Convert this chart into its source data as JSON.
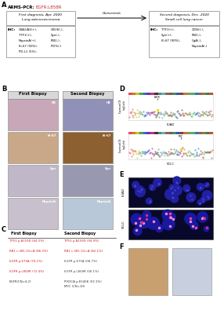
{
  "panel_A": {
    "arms_pcr_label": "ARMS-PCR:",
    "arms_pcr_value": "EGFR:L858R",
    "box1_lines": [
      "First diagnosis, Apr. 2020",
      "Lung adenocarcinoma"
    ],
    "box2_lines": [
      "Second diagnosis, Dec. 2020",
      "Small cell lung cancer"
    ],
    "arrow_label": "Osimertinib",
    "box1_ihc_left": [
      "CKA1/A3(+),",
      "TTF1(+),",
      "NapsinA(+),",
      "Ki-67 (50%),",
      "PD-L1 (5%),"
    ],
    "box1_ihc_right": [
      "CK5/6(-),",
      "Syn(-),",
      "P40(-),",
      "PD%(-) "
    ],
    "box2_ihc_left": [
      "TTF1(+),",
      "Syn(+),",
      "Ki-67 (90%),"
    ],
    "box2_ihc_right": [
      "CD56(-),",
      "P40(-),",
      "CgA(-),",
      "NapsinA(-)"
    ]
  },
  "panel_B": {
    "col1_header": "First Biopsy",
    "col2_header": "Second Biopsy",
    "rows": [
      "HE",
      "Ki-67",
      "Syn",
      "NapsinA"
    ],
    "row_colors_1": [
      "#c8a8b8",
      "#c8a888",
      "#c0b8c8",
      "#c8c0cc"
    ],
    "row_colors_2": [
      "#9090b8",
      "#8c6030",
      "#9898b0",
      "#b8c8d8"
    ]
  },
  "panel_C": {
    "header1": "First Biopsy",
    "header2": "Second Biopsy",
    "rows": [
      {
        "col1": "TP53 p.A159D (84.3%)",
        "col2": "TP53 p.A159D (94.9%)",
        "c1": "#cc2222",
        "c2": "#cc2222"
      },
      {
        "col1": "RB1 c.365-1G>A (86.3%)",
        "col2": "RB1 c.365-1G>A (82.1%)",
        "c1": "#cc2222",
        "c2": "#cc2222"
      },
      {
        "col1": "EGFR p.E75A (70.1%)",
        "col2": "EGFR p.E75A (08.7%)",
        "c1": "#cc2222",
        "c2": "#444444"
      },
      {
        "col1": "EGFR p.L858R (72.4%)",
        "col2": "EGFR p.L858R (06.1%)",
        "c1": "#cc2222",
        "c2": "#444444"
      },
      {
        "col1": "EGFR(CN=4.2)",
        "col2": "PIK3CA p.E545K (53.1%)",
        "col2b": "MYC (CN=10)",
        "c1": "#333333",
        "c2": "#333333"
      }
    ]
  },
  "chr_colors": [
    "#e05050",
    "#d07830",
    "#c8c030",
    "#50a050",
    "#3070c0",
    "#7030c0",
    "#c03870",
    "#383838",
    "#787878",
    "#50b8b8",
    "#986050",
    "#786038",
    "#508078",
    "#3858a0",
    "#983838",
    "#b87850",
    "#78a050",
    "#50b070",
    "#3878a0",
    "#786878",
    "#987830",
    "#388058",
    "#b85838"
  ],
  "panel_E": {
    "luad_bg": "#0a0a2a",
    "sclc_bg": "#0a0a2a",
    "label1": "LUAD",
    "label2": "SCLC"
  },
  "panel_F": {
    "color1": "#c8a070",
    "color2": "#c8d0e0"
  }
}
